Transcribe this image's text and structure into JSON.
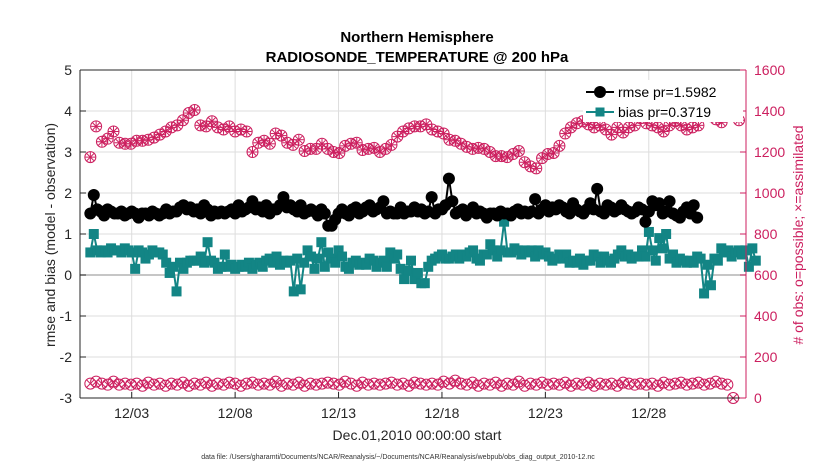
{
  "chart_data": {
    "type": "line",
    "title": "Northern Hemisphere",
    "subtitle": "RADIOSONDE_TEMPERATURE @ 200 hPa",
    "xlabel": "Dec.01,2010 00:00:00 start",
    "ylabel_left": "rmse and bias (model - observation)",
    "ylabel_right": "# of obs: o=possible; ×=assimilated",
    "xlim": [
      0.5,
      32.7
    ],
    "ylim_left": [
      -3,
      5
    ],
    "ylim_right": [
      0,
      1600
    ],
    "x_ticks": [
      3,
      8,
      13,
      18,
      23,
      28
    ],
    "x_tick_labels": [
      "12/03",
      "12/08",
      "12/13",
      "12/18",
      "12/23",
      "12/28"
    ],
    "y_left_ticks": [
      "-3",
      "-2",
      "-1",
      "0",
      "1",
      "2",
      "3",
      "4",
      "5"
    ],
    "y_right_ticks": [
      "0",
      "200",
      "400",
      "600",
      "800",
      "1000",
      "1200",
      "1400",
      "1600"
    ],
    "legend": [
      {
        "label": "rmse pr=1.5982",
        "color": "#000000"
      },
      {
        "label": "bias pr=0.3719",
        "color": "#138585"
      }
    ],
    "x_step": 0.25,
    "x_start": 1.0,
    "series": [
      {
        "name": "rmse",
        "color": "#000000",
        "values": [
          1.5,
          1.95,
          1.6,
          1.55,
          1.45,
          1.6,
          1.55,
          1.5,
          1.5,
          1.55,
          1.45,
          1.5,
          1.55,
          1.5,
          1.4,
          1.5,
          1.5,
          1.45,
          1.55,
          1.5,
          1.45,
          1.5,
          1.6,
          1.5,
          1.55,
          1.55,
          1.65,
          1.7,
          1.6,
          1.65,
          1.55,
          1.6,
          1.5,
          1.7,
          1.6,
          1.45,
          1.55,
          1.5,
          1.55,
          1.5,
          1.55,
          1.6,
          1.5,
          1.7,
          1.55,
          1.6,
          1.65,
          1.8,
          1.6,
          1.65,
          1.55,
          1.7,
          1.5,
          1.6,
          1.6,
          1.7,
          1.9,
          1.65,
          1.7,
          1.6,
          1.55,
          1.7,
          1.5,
          1.55,
          1.6,
          1.55,
          1.45,
          1.6,
          1.5,
          1.2,
          1.2,
          1.35,
          1.5,
          1.6,
          1.5,
          1.45,
          1.6,
          1.65,
          1.5,
          1.55,
          1.65,
          1.7,
          1.55,
          1.6,
          1.65,
          1.8,
          1.5,
          1.55,
          1.5,
          1.5,
          1.65,
          1.5,
          1.55,
          1.55,
          1.65,
          1.55,
          1.6,
          1.5,
          1.55,
          1.9,
          1.5,
          1.6,
          1.6,
          1.7,
          2.35,
          1.8,
          1.5,
          1.55,
          1.6,
          1.45,
          1.55,
          1.65,
          1.5,
          1.55,
          1.5,
          1.4,
          1.5,
          1.5,
          1.45,
          1.55,
          1.5,
          1.5,
          1.45,
          1.55,
          1.6,
          1.5,
          1.55,
          1.5,
          1.55,
          1.85,
          1.5,
          1.6,
          1.7,
          1.55,
          1.65,
          1.6,
          1.7,
          1.65,
          1.55,
          1.5,
          1.75,
          1.6,
          1.55,
          1.5,
          1.6,
          1.75,
          1.6,
          2.1,
          1.55,
          1.5,
          1.7,
          1.65,
          1.55,
          1.6,
          1.7,
          1.6,
          1.55,
          1.5,
          1.55,
          1.65,
          1.6,
          1.3,
          1.55,
          1.8,
          1.7,
          1.75,
          1.5,
          1.55,
          1.8,
          1.5,
          1.45,
          1.4,
          1.55,
          1.65,
          1.5,
          1.7,
          1.4
        ]
      },
      {
        "name": "bias",
        "color": "#138585",
        "values": [
          0.55,
          1.0,
          0.6,
          0.55,
          0.6,
          0.55,
          0.65,
          0.6,
          0.6,
          0.55,
          0.65,
          0.6,
          0.55,
          0.15,
          0.6,
          0.55,
          0.4,
          0.5,
          0.6,
          0.55,
          0.55,
          0.5,
          0.3,
          0.05,
          0.2,
          -0.4,
          0.3,
          0.15,
          0.3,
          0.35,
          0.35,
          0.35,
          0.45,
          0.3,
          0.8,
          0.35,
          0.3,
          0.15,
          0.2,
          0.5,
          0.2,
          0.25,
          0.15,
          0.2,
          0.25,
          0.2,
          0.3,
          0.15,
          0.25,
          0.3,
          0.2,
          0.35,
          0.4,
          0.3,
          0.45,
          0.25,
          0.35,
          0.3,
          0.35,
          -0.4,
          0.4,
          -0.35,
          0.3,
          0.6,
          0.45,
          0.15,
          0.4,
          0.8,
          0.2,
          0.55,
          0.4,
          0.3,
          0.6,
          0.45,
          0.2,
          0.15,
          0.3,
          0.35,
          0.25,
          0.3,
          0.25,
          0.4,
          0.35,
          0.2,
          0.3,
          0.35,
          0.2,
          0.55,
          0.4,
          0.5,
          0.15,
          -0.1,
          0.1,
          0.35,
          -0.1,
          0.05,
          -0.2,
          -0.2,
          0.2,
          0.35,
          0.4,
          0.45,
          0.5,
          0.4,
          0.4,
          0.45,
          0.5,
          0.4,
          0.5,
          0.45,
          0.55,
          0.6,
          0.4,
          0.35,
          0.5,
          0.5,
          0.75,
          0.6,
          0.45,
          0.6,
          1.3,
          0.55,
          0.55,
          0.65,
          0.6,
          0.5,
          0.6,
          0.55,
          0.6,
          0.45,
          0.6,
          0.5,
          0.55,
          0.45,
          0.35,
          0.4,
          0.5,
          0.4,
          0.5,
          0.3,
          0.35,
          0.3,
          0.4,
          0.25,
          0.35,
          0.35,
          0.5,
          0.45,
          0.3,
          0.45,
          0.35,
          0.3,
          0.4,
          0.5,
          0.6,
          0.45,
          0.5,
          0.4,
          0.45,
          0.45,
          0.6,
          0.45,
          1.05,
          0.6,
          0.35,
          0.9,
          0.65,
          1.0,
          0.4,
          0.5,
          0.3,
          0.4,
          0.35,
          0.3,
          0.35,
          0.3,
          0.45,
          0.4,
          -0.45,
          0.25,
          -0.25,
          0.4,
          0.35,
          0.65,
          0.55,
          0.6,
          0.45,
          0.55,
          0.6,
          0.5,
          0.6,
          0.2,
          0.65,
          0.35
        ]
      },
      {
        "name": "obs_possible",
        "color": "#cc1f5f",
        "axis": "right",
        "values": [
          1175,
          1325,
          1250,
          1265,
          1300,
          1245,
          1240,
          1240,
          1255,
          1255,
          1260,
          1270,
          1285,
          1300,
          1320,
          1330,
          1355,
          1390,
          1405,
          1330,
          1325,
          1350,
          1320,
          1310,
          1325,
          1300,
          1310,
          1300,
          1200,
          1245,
          1255,
          1240,
          1290,
          1280,
          1245,
          1235,
          1260,
          1205,
          1215,
          1215,
          1240,
          1215,
          1200,
          1195,
          1230,
          1240,
          1245,
          1210,
          1215,
          1220,
          1200,
          1215,
          1235,
          1275,
          1300,
          1315,
          1325,
          1325,
          1335,
          1310,
          1300,
          1290,
          1260,
          1255,
          1240,
          1225,
          1215,
          1220,
          1215,
          1200,
          1180,
          1180,
          1175,
          1190,
          1205,
          1150,
          1130,
          1120,
          1170,
          1190,
          1195,
          1230,
          1290,
          1320,
          1340,
          1350,
          1335,
          1320,
          1330,
          1310,
          1285,
          1320,
          1295,
          1320,
          1330,
          1365,
          1340,
          1330,
          1320,
          1300,
          1330,
          1350,
          1330,
          1310,
          1320,
          1330,
          1400,
          1375,
          1360,
          1345,
          1375,
          1380,
          1355
        ]
      },
      {
        "name": "obs_assimilated",
        "color": "#cc1f5f",
        "axis": "right",
        "values": [
          70,
          80,
          70,
          65,
          80,
          65,
          70,
          65,
          70,
          60,
          75,
          65,
          70,
          60,
          70,
          65,
          75,
          60,
          70,
          65,
          75,
          60,
          70,
          65,
          75,
          70,
          60,
          70,
          75,
          65,
          70,
          65,
          80,
          60,
          70,
          65,
          75,
          60,
          70,
          65,
          70,
          75,
          70,
          65,
          80,
          70,
          60,
          75,
          65,
          70,
          65,
          70,
          75,
          65,
          70,
          60,
          75,
          70,
          65,
          70,
          65,
          80,
          70,
          85,
          70,
          65,
          75,
          60,
          70,
          65,
          75,
          60,
          70,
          65,
          80,
          60,
          70,
          65,
          75,
          65,
          70,
          65,
          75,
          60,
          70,
          65,
          75,
          60,
          70,
          65,
          70,
          60,
          75,
          70,
          65,
          70,
          65,
          70,
          60,
          75,
          65,
          70,
          75,
          65,
          70,
          75,
          65,
          70,
          80,
          70,
          65,
          0
        ]
      }
    ]
  },
  "footnote": "data file: /Users/gharamti/Documents/NCAR/Reanalysis/~/Documents/NCAR/Reanalysis/webpub/obs_diag_output_2010-12.nc"
}
